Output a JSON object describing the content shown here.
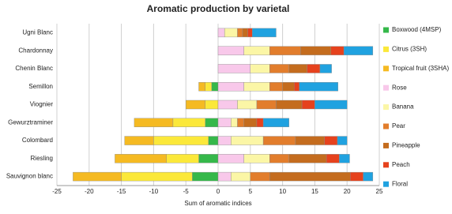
{
  "chart_data": {
    "type": "diverging-stacked-bar",
    "title": "Aromatic production by varietal",
    "xlabel": "Sum of aromatic indices",
    "categories": [
      "Ugni Blanc",
      "Chardonnay",
      "Chenin Blanc",
      "Semillon",
      "Viognier",
      "Gewurztraminer",
      "Colombard",
      "Riesling",
      "Sauvignon blanc"
    ],
    "series": [
      {
        "name": "Boxwood (4MSP)",
        "color": "#35b84a",
        "values": [
          0,
          0,
          0,
          -1,
          0,
          -2,
          -1.5,
          -3,
          -4
        ]
      },
      {
        "name": "Citrus (3SH)",
        "color": "#fbe83a",
        "values": [
          0,
          0,
          0,
          -1,
          -2,
          -5,
          -8.5,
          -5,
          -11
        ]
      },
      {
        "name": "Tropical fruit (3SHA)",
        "color": "#f5ba22",
        "values": [
          0,
          0,
          0,
          -1,
          -3,
          -6,
          -4.5,
          -8,
          -7.5
        ]
      },
      {
        "name": "Rose",
        "color": "#f8c8ea",
        "values": [
          1,
          4,
          5,
          4,
          3,
          2,
          2,
          4,
          2
        ]
      },
      {
        "name": "Banana",
        "color": "#fbf6a6",
        "values": [
          2,
          4,
          3,
          4,
          3,
          1,
          5,
          4,
          3
        ]
      },
      {
        "name": "Pear",
        "color": "#e27d2c",
        "values": [
          0.8,
          4.8,
          3,
          2,
          3,
          1,
          5,
          3,
          3
        ]
      },
      {
        "name": "Pineapple",
        "color": "#c46c1e",
        "values": [
          0.8,
          4.7,
          2.8,
          1.8,
          4,
          2,
          4.5,
          5.8,
          12.5
        ]
      },
      {
        "name": "Peach",
        "color": "#e6421d",
        "values": [
          0.7,
          2,
          2,
          0.8,
          2,
          1,
          2,
          2,
          2
        ]
      },
      {
        "name": "Floral",
        "color": "#20a2e0",
        "values": [
          3.7,
          4.5,
          1.8,
          6,
          5,
          4,
          1.5,
          1.6,
          1.5
        ]
      }
    ],
    "xlim": [
      -25,
      25
    ],
    "xticks": [
      -25,
      -20,
      -15,
      -10,
      -5,
      0,
      5,
      10,
      15,
      20,
      25
    ],
    "grid": true
  }
}
